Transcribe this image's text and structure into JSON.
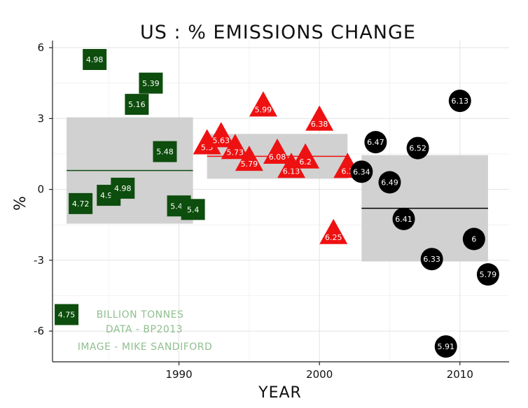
{
  "chart_data": {
    "type": "scatter",
    "title": "US : % EMISSIONS CHANGE",
    "xlabel": "YEAR",
    "ylabel": "%",
    "xlim": [
      1981,
      2013.5
    ],
    "ylim": [
      -7.3,
      6.3
    ],
    "x_ticks": [
      1990,
      2000,
      2010
    ],
    "y_ticks": [
      6,
      3,
      0,
      -3,
      -6
    ],
    "y_tick_labels": [
      "6",
      "3",
      "0",
      "-3",
      "-6"
    ],
    "grid": true,
    "annotations": [
      "BILLION TONNES",
      "DATA - BP2013",
      "IMAGE - MIKE SANDIFORD"
    ],
    "series": [
      {
        "marker": "square",
        "color": "#0d4d0d",
        "band": {
          "x": [
            1982,
            1991
          ],
          "y": [
            -1.45,
            3.05
          ],
          "mean": 0.8
        },
        "points": [
          {
            "x": 1982,
            "y": -5.3,
            "label": "4.75"
          },
          {
            "x": 1983,
            "y": -0.6,
            "label": "4.72"
          },
          {
            "x": 1984,
            "y": 5.5,
            "label": "4.98"
          },
          {
            "x": 1985,
            "y": -0.25,
            "label": "4.97"
          },
          {
            "x": 1986,
            "y": 0.05,
            "label": "4.98"
          },
          {
            "x": 1987,
            "y": 3.6,
            "label": "5.16"
          },
          {
            "x": 1988,
            "y": 4.5,
            "label": "5.39"
          },
          {
            "x": 1989,
            "y": 1.6,
            "label": "5.48"
          },
          {
            "x": 1990,
            "y": -0.7,
            "label": "5.44"
          },
          {
            "x": 1991,
            "y": -0.85,
            "label": "5.4"
          }
        ]
      },
      {
        "marker": "triangle",
        "color": "#ee1111",
        "band": {
          "x": [
            1992,
            2002
          ],
          "y": [
            0.45,
            2.35
          ],
          "mean": 1.4
        },
        "points": [
          {
            "x": 1992,
            "y": 1.9,
            "label": "5.5"
          },
          {
            "x": 1993,
            "y": 2.2,
            "label": "5.63"
          },
          {
            "x": 1994,
            "y": 1.7,
            "label": "5.73"
          },
          {
            "x": 1995,
            "y": 1.2,
            "label": "5.79"
          },
          {
            "x": 1996,
            "y": 3.5,
            "label": "5.99"
          },
          {
            "x": 1997,
            "y": 1.5,
            "label": "6.08"
          },
          {
            "x": 1998,
            "y": 0.9,
            "label": "6.13"
          },
          {
            "x": 1999,
            "y": 1.3,
            "label": "6.2"
          },
          {
            "x": 2000,
            "y": 2.9,
            "label": "6.38"
          },
          {
            "x": 2001,
            "y": -1.9,
            "label": "6.25"
          },
          {
            "x": 2002,
            "y": 0.9,
            "label": "6.3"
          }
        ]
      },
      {
        "marker": "circle",
        "color": "#000000",
        "band": {
          "x": [
            2003,
            2012
          ],
          "y": [
            -3.05,
            1.45
          ],
          "mean": -0.8
        },
        "points": [
          {
            "x": 2003,
            "y": 0.75,
            "label": "6.34"
          },
          {
            "x": 2004,
            "y": 2.0,
            "label": "6.47"
          },
          {
            "x": 2005,
            "y": 0.3,
            "label": "6.49"
          },
          {
            "x": 2006,
            "y": -1.25,
            "label": "6.41"
          },
          {
            "x": 2007,
            "y": 1.75,
            "label": "6.52"
          },
          {
            "x": 2008,
            "y": -2.95,
            "label": "6.33"
          },
          {
            "x": 2009,
            "y": -6.65,
            "label": "5.91"
          },
          {
            "x": 2010,
            "y": 3.75,
            "label": "6.13"
          },
          {
            "x": 2011,
            "y": -2.1,
            "label": "6"
          },
          {
            "x": 2012,
            "y": -3.6,
            "label": "5.79"
          }
        ]
      }
    ]
  }
}
